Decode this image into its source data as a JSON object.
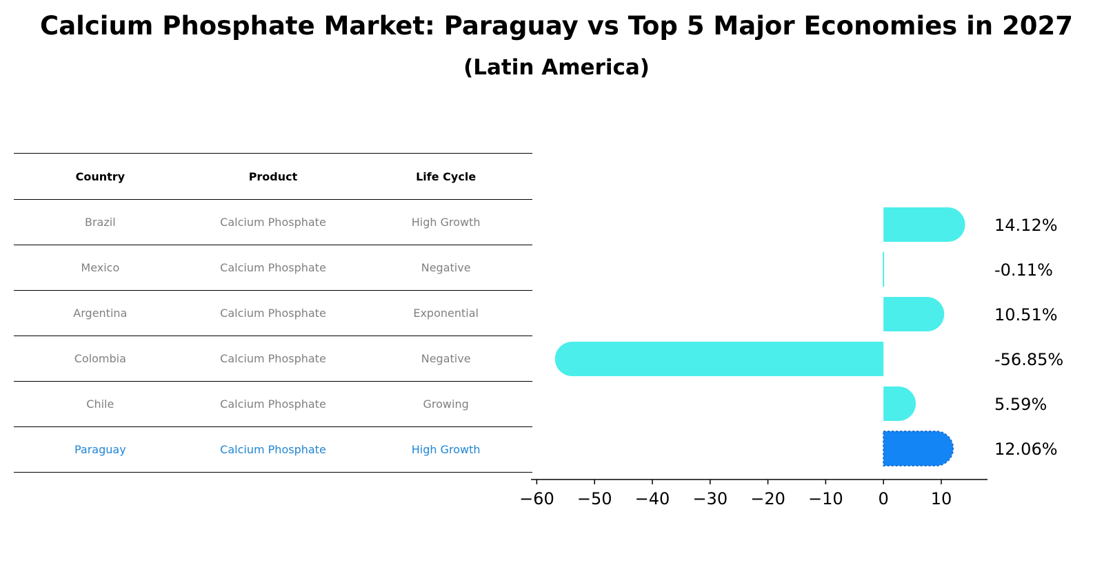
{
  "title": "Calcium Phosphate Market: Paraguay vs Top 5 Major Economies in 2027",
  "subtitle": "(Latin America)",
  "table": {
    "headers": [
      "Country",
      "Product",
      "Life Cycle"
    ],
    "rows": [
      {
        "country": "Brazil",
        "product": "Calcium Phosphate",
        "life_cycle": "High Growth"
      },
      {
        "country": "Mexico",
        "product": "Calcium Phosphate",
        "life_cycle": "Negative"
      },
      {
        "country": "Argentina",
        "product": "Calcium Phosphate",
        "life_cycle": "Exponential"
      },
      {
        "country": "Colombia",
        "product": "Calcium Phosphate",
        "life_cycle": "Negative"
      },
      {
        "country": "Chile",
        "product": "Calcium Phosphate",
        "life_cycle": "Growing"
      },
      {
        "country": "Paraguay",
        "product": "Calcium Phosphate",
        "life_cycle": "High Growth"
      }
    ]
  },
  "chart_data": {
    "type": "bar",
    "orientation": "horizontal",
    "categories": [
      "Brazil",
      "Mexico",
      "Argentina",
      "Colombia",
      "Chile",
      "Paraguay"
    ],
    "values": [
      14.12,
      -0.11,
      10.51,
      -56.85,
      5.59,
      12.06
    ],
    "value_labels": [
      "14.12%",
      "-0.11%",
      "10.51%",
      "-56.85%",
      "5.59%",
      "12.06%"
    ],
    "xlim": [
      -61,
      18
    ],
    "xticks": [
      -60,
      -50,
      -40,
      -30,
      -20,
      -10,
      0,
      10
    ],
    "xtick_labels": [
      "−60",
      "−50",
      "−40",
      "−30",
      "−20",
      "−10",
      "0",
      "10"
    ],
    "grid": false,
    "colors": {
      "default": "#4beeea",
      "highlight": "#1485f5",
      "highlight_row_text": "#1f86d4"
    }
  }
}
